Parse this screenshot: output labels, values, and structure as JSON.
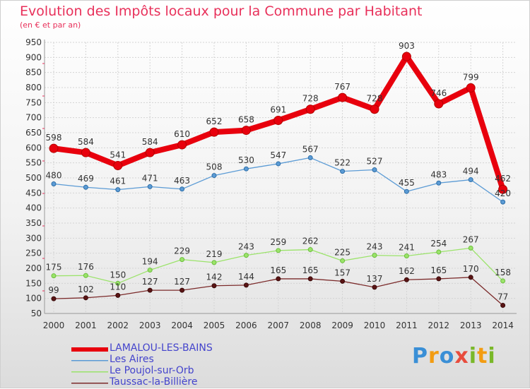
{
  "header": {
    "title": "Evolution des Impôts locaux pour la Commune par Habitant",
    "subtitle": "(en € et par an)"
  },
  "logo": {
    "text": "Proxiti",
    "letters": [
      "P",
      "r",
      "o",
      "x",
      "i",
      "t",
      "i"
    ]
  },
  "chart_data": {
    "type": "line",
    "title": "Evolution des Impôts locaux pour la Commune par Habitant",
    "subtitle": "(en € et par an)",
    "xlabel": "",
    "ylabel": "",
    "x": [
      "2000",
      "2001",
      "2002",
      "2003",
      "2004",
      "2005",
      "2006",
      "2007",
      "2008",
      "2009",
      "2010",
      "2011",
      "2012",
      "2013",
      "2014"
    ],
    "ylim": [
      50,
      950
    ],
    "yticks": [
      50,
      100,
      150,
      200,
      250,
      300,
      350,
      400,
      450,
      500,
      550,
      600,
      650,
      700,
      750,
      800,
      850,
      900,
      950
    ],
    "grid": true,
    "legend_position": "bottom-left",
    "series": [
      {
        "name": "LAMALOU-LES-BAINS",
        "color": "#e8000d",
        "values": [
          598,
          584,
          541,
          584,
          610,
          652,
          658,
          691,
          728,
          767,
          728,
          903,
          746,
          799,
          462
        ]
      },
      {
        "name": "Les Aires",
        "color": "#5b9bd5",
        "values": [
          480,
          469,
          461,
          471,
          463,
          508,
          530,
          547,
          567,
          522,
          527,
          455,
          483,
          494,
          420
        ]
      },
      {
        "name": "Le Poujol-sur-Orb",
        "color": "#9be36a",
        "values": [
          175,
          176,
          150,
          194,
          229,
          219,
          243,
          259,
          262,
          225,
          243,
          241,
          254,
          267,
          158
        ]
      },
      {
        "name": "Taussac-la-Billière",
        "color": "#7b2a2a",
        "values": [
          99,
          102,
          110,
          127,
          127,
          142,
          144,
          165,
          165,
          157,
          137,
          162,
          165,
          170,
          77
        ]
      }
    ]
  }
}
